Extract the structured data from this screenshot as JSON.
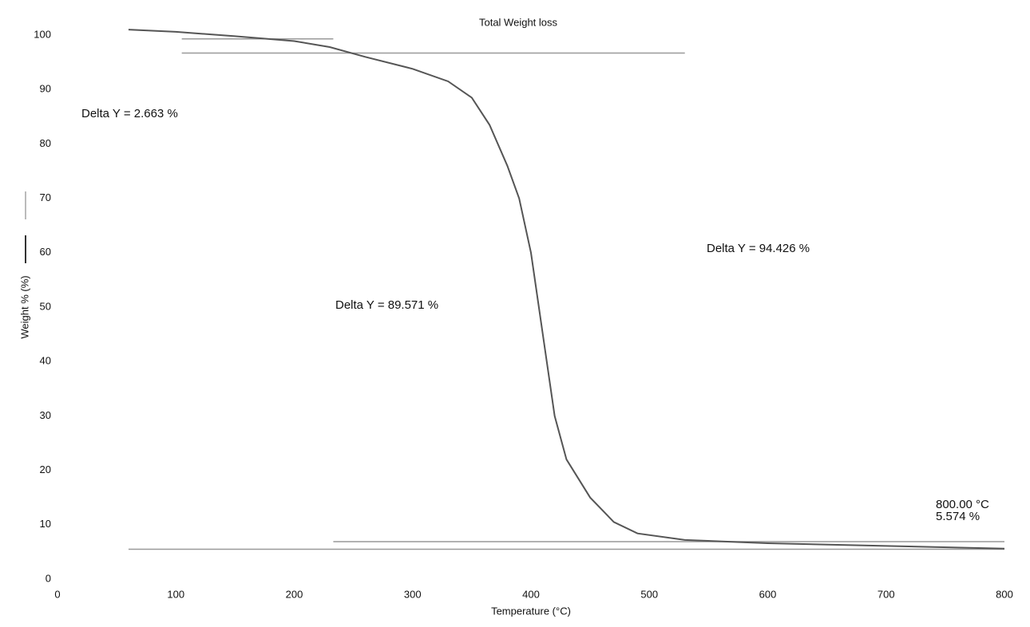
{
  "chart_data": {
    "type": "line",
    "title": "Total Weight loss",
    "x_label": "Temperature (°C)",
    "y_label": "Weight % (%)",
    "x": [
      60,
      100,
      150,
      200,
      230,
      260,
      300,
      330,
      350,
      365,
      380,
      390,
      400,
      410,
      420,
      430,
      450,
      470,
      490,
      530,
      600,
      700,
      800
    ],
    "series": [
      {
        "color": "#555555",
        "values": [
          101,
          100.6,
          99.8,
          98.9,
          97.8,
          96.0,
          93.8,
          91.5,
          88.5,
          83.5,
          76,
          70,
          60,
          45,
          30,
          22,
          15,
          10.5,
          8.4,
          7.2,
          6.6,
          6.1,
          5.6
        ]
      }
    ],
    "reference_lines": [
      {
        "x": [
          105,
          233
        ],
        "y": 99.3
      },
      {
        "x": [
          105,
          530
        ],
        "y": 96.7
      },
      {
        "x": [
          233,
          800
        ],
        "y": 6.9
      },
      {
        "x": [
          60,
          800
        ],
        "y": 5.5
      }
    ],
    "annotations": [
      "Delta Y = 2.663 %",
      "Delta Y = 89.571 %",
      "Delta Y = 94.426 %",
      "800.00 °C",
      "5.574 %"
    ],
    "xlim": [
      0,
      800
    ],
    "ylim": [
      0,
      100
    ],
    "xticks": [
      0,
      100,
      200,
      300,
      400,
      500,
      600,
      700,
      800
    ],
    "yticks": [
      0,
      10,
      20,
      30,
      40,
      50,
      60,
      70,
      80,
      90,
      100
    ],
    "grid": false
  }
}
